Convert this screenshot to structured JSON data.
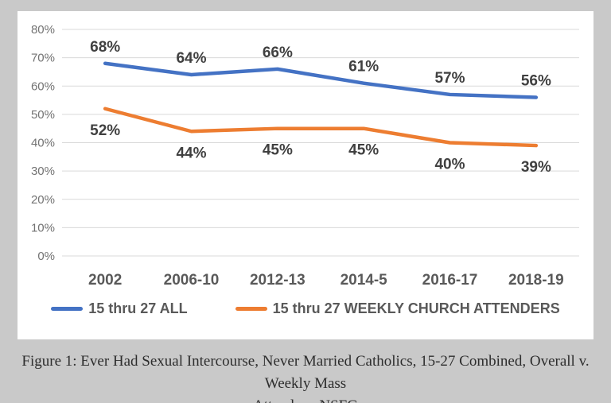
{
  "chart_data": {
    "type": "line",
    "categories": [
      "2002",
      "2006-10",
      "2012-13",
      "2014-5",
      "2016-17",
      "2018-19"
    ],
    "series": [
      {
        "name": "15 thru 27 ALL",
        "color": "#4472C4",
        "values": [
          68,
          64,
          66,
          61,
          57,
          56
        ],
        "labels": [
          "68%",
          "64%",
          "66%",
          "61%",
          "57%",
          "56%"
        ],
        "label_position": "above"
      },
      {
        "name": "15 thru 27 WEEKLY CHURCH ATTENDERS",
        "color": "#ED7D31",
        "values": [
          52,
          44,
          45,
          45,
          40,
          39
        ],
        "labels": [
          "52%",
          "44%",
          "45%",
          "45%",
          "40%",
          "39%"
        ],
        "label_position": "below"
      }
    ],
    "y_axis": {
      "min": 0,
      "max": 80,
      "step": 10,
      "tick_labels": [
        "0%",
        "10%",
        "20%",
        "30%",
        "40%",
        "50%",
        "60%",
        "70%",
        "80%"
      ]
    },
    "xlabel": "",
    "ylabel": "",
    "title": "",
    "grid": true,
    "legend_position": "bottom",
    "colors": {
      "gridline": "#d9d9d9",
      "plot_background": "#ffffff",
      "page_background": "#c9c9c9"
    }
  },
  "caption": {
    "line1": "Figure 1: Ever Had Sexual Intercourse, Never Married Catholics, 15-27 Combined, Overall v. Weekly Mass",
    "line2": "Attenders, NSFG"
  }
}
